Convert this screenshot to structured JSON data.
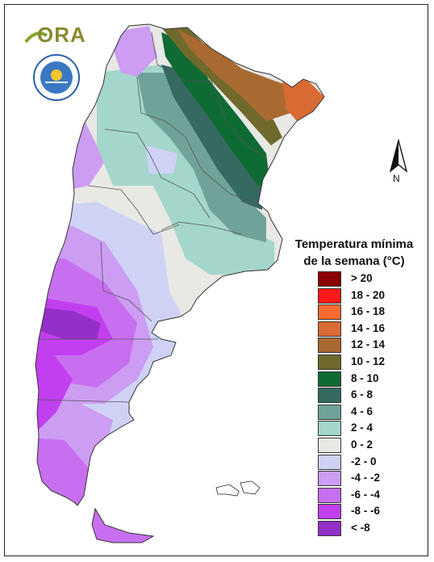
{
  "logo": {
    "text": "ORA"
  },
  "north_arrow": {
    "label": "N"
  },
  "legend": {
    "title_line1": "Temperatura mínima",
    "title_line2": "de la semana (°C)",
    "classes": [
      {
        "label": "> 20",
        "color": "#8b0000"
      },
      {
        "label": "18 - 20",
        "color": "#ff1a1a"
      },
      {
        "label": "16 - 18",
        "color": "#ff6a33"
      },
      {
        "label": "14 - 16",
        "color": "#d86b34"
      },
      {
        "label": "12 - 14",
        "color": "#a96a32"
      },
      {
        "label": "10 - 12",
        "color": "#6f6a2c"
      },
      {
        "label": "8 - 10",
        "color": "#0f6b34"
      },
      {
        "label": "6 - 8",
        "color": "#356a62"
      },
      {
        "label": "4 - 6",
        "color": "#6fa39a"
      },
      {
        "label": "2 - 4",
        "color": "#a4d6cc"
      },
      {
        "label": "0 - 2",
        "color": "#e8e8e4"
      },
      {
        "label": "-2 - 0",
        "color": "#cfd2f5"
      },
      {
        "label": "-4 - -2",
        "color": "#cc9df3"
      },
      {
        "label": "-6 - -4",
        "color": "#c86ff0"
      },
      {
        "label": "-8 - -6",
        "color": "#c23ff0"
      },
      {
        "label": "< -8",
        "color": "#9430c8"
      }
    ]
  }
}
